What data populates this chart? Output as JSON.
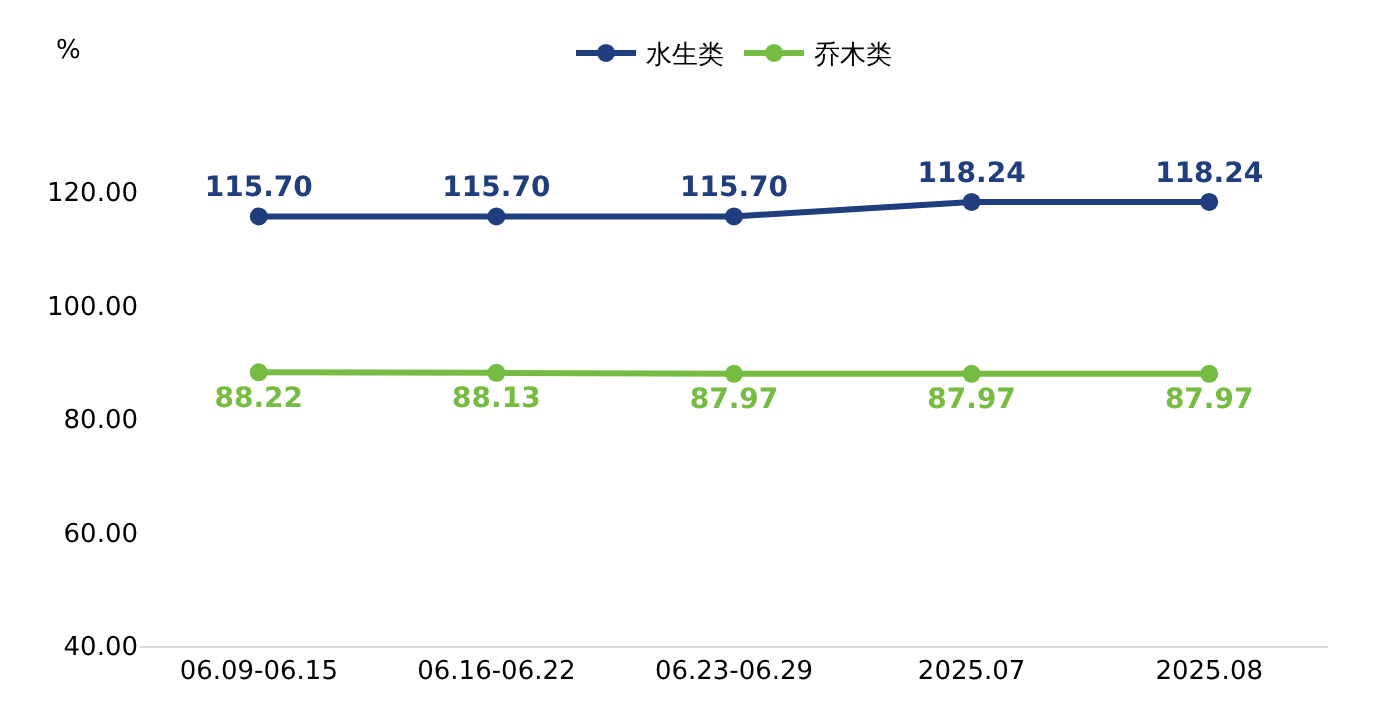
{
  "chart_data": {
    "type": "line",
    "ylabel": "%",
    "categories": [
      "06.09-06.15",
      "06.16-06.22",
      "06.23-06.29",
      "2025.07",
      "2025.08"
    ],
    "series": [
      {
        "name": "水生类",
        "color": "#203e7e",
        "values": [
          115.7,
          115.7,
          115.7,
          118.24,
          118.24
        ],
        "value_labels": [
          "115.70",
          "115.70",
          "115.70",
          "118.24",
          "118.24"
        ]
      },
      {
        "name": "乔木类",
        "color": "#77bc42",
        "values": [
          88.22,
          88.13,
          87.97,
          87.97,
          87.97
        ],
        "value_labels": [
          "88.22",
          "88.13",
          "87.97",
          "87.97",
          "87.97"
        ]
      }
    ],
    "ylim": [
      40,
      120
    ],
    "yticks": [
      {
        "value": 40,
        "label": "40.00"
      },
      {
        "value": 60,
        "label": "60.00"
      },
      {
        "value": 80,
        "label": "80.00"
      },
      {
        "value": 100,
        "label": "100.00"
      },
      {
        "value": 120,
        "label": "120.00"
      }
    ],
    "grid": false,
    "legend": "top",
    "marker": "circle",
    "line_style": "solid"
  }
}
